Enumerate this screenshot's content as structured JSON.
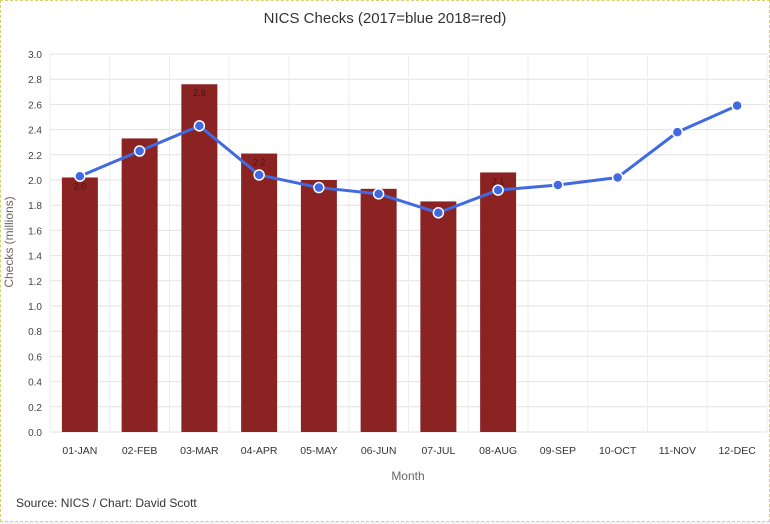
{
  "chart_data": {
    "type": "bar",
    "title": "NICS Checks (2017=blue 2018=red)",
    "xlabel": "Month",
    "ylabel": "Checks (millions)",
    "ylim": [
      0,
      3.0
    ],
    "yticks": [
      "0.0",
      "0.2",
      "0.4",
      "0.6",
      "0.8",
      "1.0",
      "1.2",
      "1.4",
      "1.6",
      "1.8",
      "2.0",
      "2.2",
      "2.4",
      "2.6",
      "2.8",
      "3.0"
    ],
    "categories": [
      "01-JAN",
      "02-FEB",
      "03-MAR",
      "04-APR",
      "05-MAY",
      "06-JUN",
      "07-JUL",
      "08-AUG",
      "09-SEP",
      "10-OCT",
      "11-NOV",
      "12-DEC"
    ],
    "series": [
      {
        "name": "2018",
        "type": "bar",
        "color": "#8b2323",
        "values": [
          2.02,
          2.33,
          2.76,
          2.21,
          2.0,
          1.93,
          1.83,
          2.06,
          null,
          null,
          null,
          null
        ],
        "data_labels": [
          "2.0",
          "",
          "2.8",
          "2.2",
          "",
          "",
          "",
          "2.1",
          "",
          "",
          "",
          ""
        ]
      },
      {
        "name": "2017",
        "type": "line",
        "color": "#4169e1",
        "values": [
          2.03,
          2.23,
          2.43,
          2.04,
          1.94,
          1.89,
          1.74,
          1.92,
          1.96,
          2.02,
          2.38,
          2.59
        ]
      }
    ],
    "grid": true
  },
  "footer": {
    "source": "Source: NICS / Chart: David Scott"
  }
}
